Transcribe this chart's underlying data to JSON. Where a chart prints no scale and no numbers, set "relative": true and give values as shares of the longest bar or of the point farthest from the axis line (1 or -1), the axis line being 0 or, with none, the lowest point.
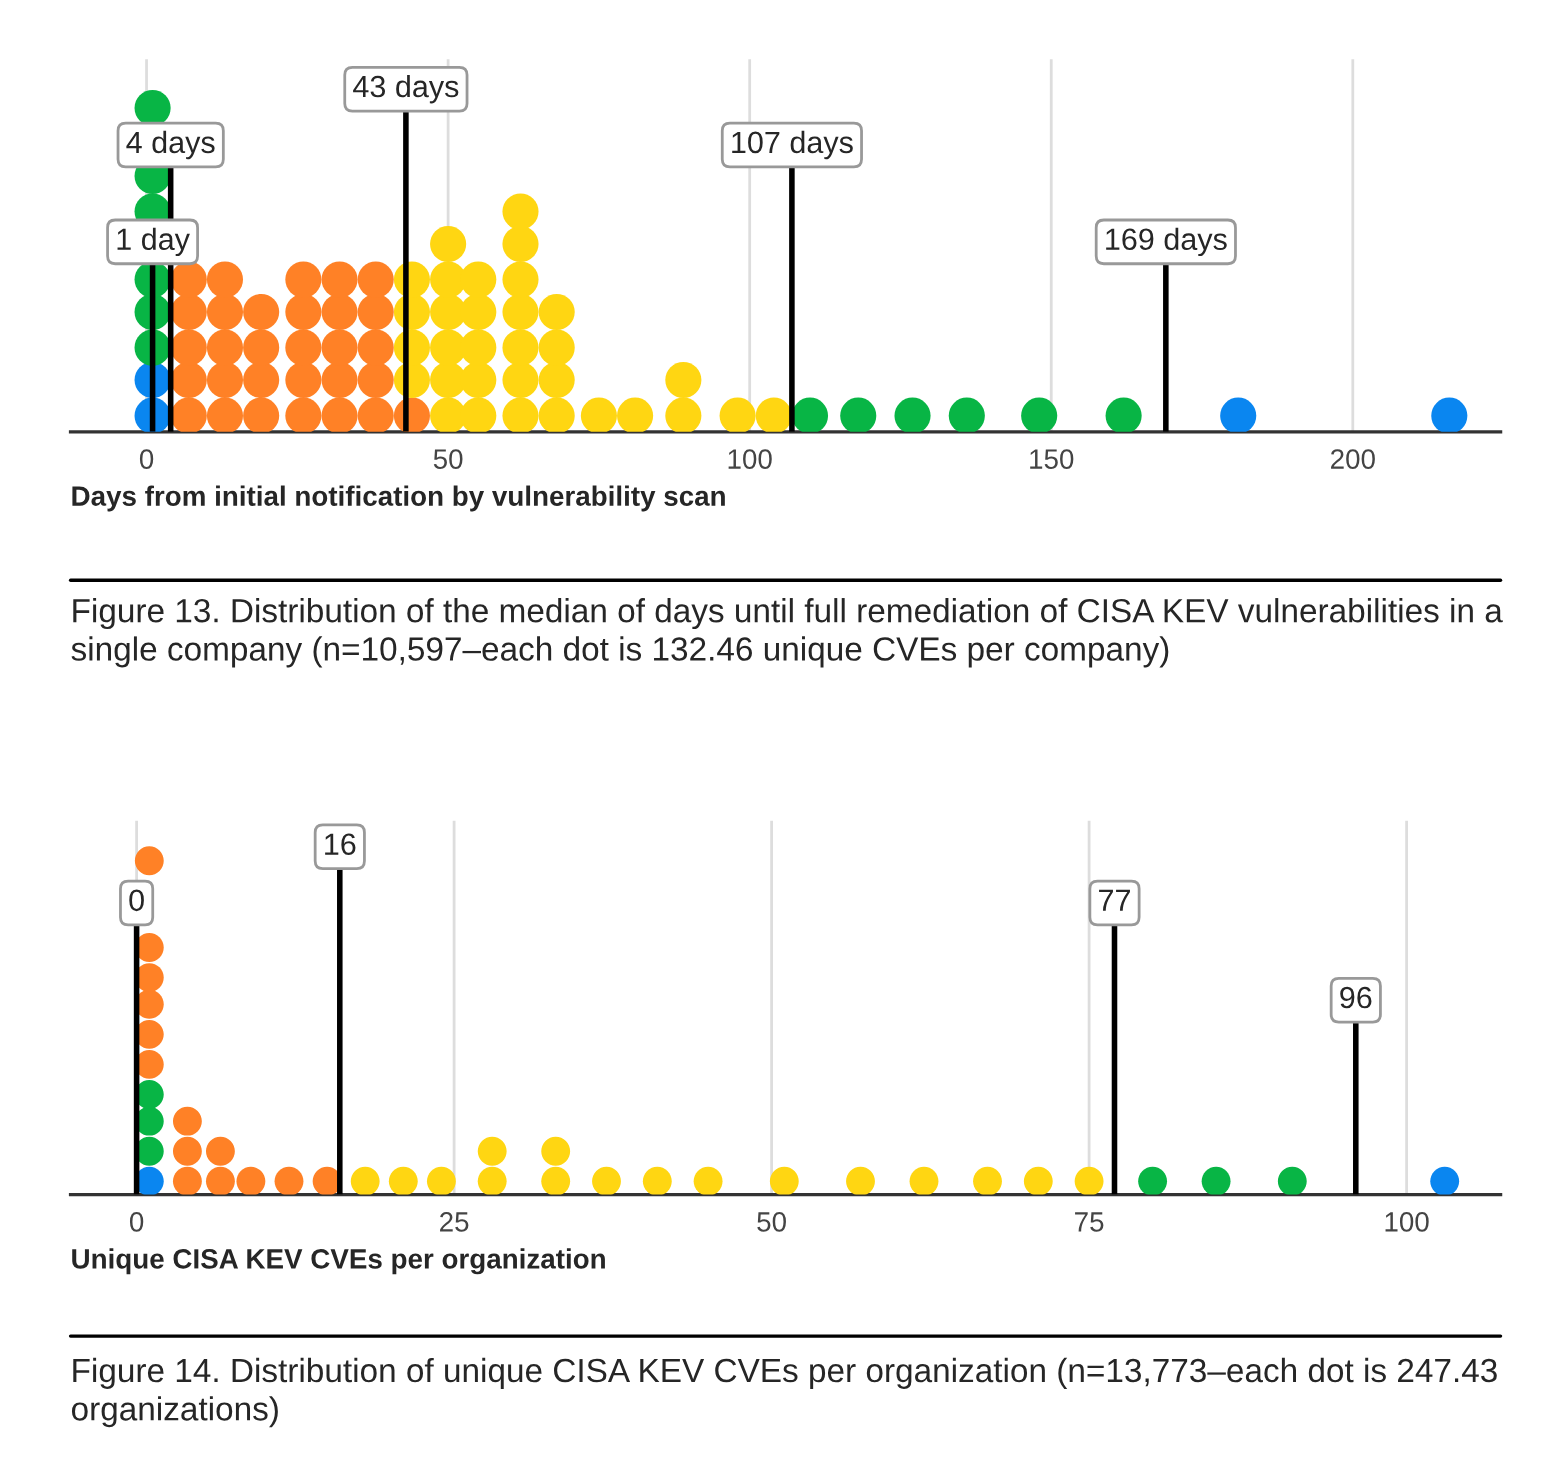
{
  "chart_data": [
    {
      "type": "scatter",
      "relative": true,
      "marker": "circle",
      "grid": "x",
      "tick_labels": "x",
      "xlabel": "Days from initial notification by vulnerability scan",
      "xlim": [
        -12.6,
        224.5
      ],
      "xticks": [
        0,
        50,
        100,
        150,
        200
      ],
      "series": [
        {
          "color": "#0a86f0",
          "x": [
            1,
            1,
            181,
            216
          ],
          "values": [
            0.05,
            0.16,
            0.05,
            0.05
          ]
        },
        {
          "color": "#08b545",
          "x": [
            1,
            1,
            1,
            1,
            1,
            1,
            110,
            118,
            127,
            136,
            148,
            162
          ],
          "values": [
            0.26,
            0.37,
            0.47,
            0.68,
            0.79,
            1.0,
            0.05,
            0.05,
            0.05,
            0.05,
            0.05,
            0.05
          ]
        },
        {
          "color": "#ff8126",
          "x": [
            7,
            7,
            7,
            7,
            7,
            13,
            13,
            13,
            13,
            13,
            19,
            19,
            19,
            19,
            26,
            26,
            26,
            26,
            26,
            32,
            32,
            32,
            32,
            32,
            38,
            38,
            38,
            38,
            38,
            44
          ],
          "values": [
            0.05,
            0.16,
            0.26,
            0.37,
            0.47,
            0.05,
            0.16,
            0.26,
            0.37,
            0.47,
            0.05,
            0.16,
            0.26,
            0.37,
            0.05,
            0.16,
            0.26,
            0.37,
            0.47,
            0.05,
            0.16,
            0.26,
            0.37,
            0.47,
            0.05,
            0.16,
            0.26,
            0.37,
            0.47,
            0.05
          ]
        },
        {
          "color": "#ffd612",
          "x": [
            44,
            44,
            44,
            44,
            50,
            50,
            50,
            50,
            50,
            50,
            55,
            55,
            55,
            55,
            55,
            62,
            62,
            62,
            62,
            62,
            62,
            62,
            68,
            68,
            68,
            68,
            75,
            81,
            89,
            89,
            98,
            104
          ],
          "values": [
            0.16,
            0.26,
            0.37,
            0.47,
            0.05,
            0.16,
            0.26,
            0.37,
            0.47,
            0.58,
            0.05,
            0.16,
            0.26,
            0.37,
            0.47,
            0.05,
            0.16,
            0.26,
            0.37,
            0.47,
            0.58,
            0.68,
            0.05,
            0.16,
            0.26,
            0.37,
            0.05,
            0.05,
            0.05,
            0.16,
            0.05,
            0.05
          ]
        }
      ],
      "ref_lines": [
        {
          "axis": "x",
          "value": 1,
          "label": "1 day",
          "color": "#000000"
        },
        {
          "axis": "x",
          "value": 4,
          "label": "4 days",
          "color": "#000000"
        },
        {
          "axis": "x",
          "value": 43,
          "label": "43 days",
          "color": "#000000"
        },
        {
          "axis": "x",
          "value": 107,
          "label": "107 days",
          "color": "#000000"
        },
        {
          "axis": "x",
          "value": 169,
          "label": "169 days",
          "color": "#000000"
        }
      ],
      "annotations": [
        "Figure 13. Distribution of the median of days until full remediation of CISA KEV vulnerabilities in a single company (n=10,597–each dot is 132.46 unique CVEs per company)"
      ]
    },
    {
      "type": "scatter",
      "relative": true,
      "marker": "circle",
      "grid": "x",
      "tick_labels": "x",
      "xlabel": "Unique CISA KEV CVEs per organization",
      "xlim": [
        -5.2,
        107.4
      ],
      "xticks": [
        0,
        25,
        50,
        75,
        100
      ],
      "series": [
        {
          "color": "#0a86f0",
          "x": [
            1,
            103
          ],
          "values": [
            0.04,
            0.04
          ]
        },
        {
          "color": "#08b545",
          "x": [
            1,
            1,
            1,
            80,
            85,
            91
          ],
          "values": [
            0.13,
            0.22,
            0.3,
            0.04,
            0.04,
            0.04
          ]
        },
        {
          "color": "#ff8126",
          "x": [
            1,
            1,
            1,
            1,
            1,
            1,
            4,
            4,
            4,
            6.6,
            6.6,
            9,
            12,
            15
          ],
          "values": [
            0.39,
            0.48,
            0.57,
            0.65,
            0.74,
            1.0,
            0.04,
            0.13,
            0.22,
            0.04,
            0.13,
            0.04,
            0.04,
            0.04
          ]
        },
        {
          "color": "#ffd612",
          "x": [
            18,
            21,
            24,
            28,
            28,
            33,
            33,
            37,
            41,
            45,
            51,
            57,
            62,
            67,
            71,
            75
          ],
          "values": [
            0.04,
            0.04,
            0.04,
            0.04,
            0.13,
            0.04,
            0.13,
            0.04,
            0.04,
            0.04,
            0.04,
            0.04,
            0.04,
            0.04,
            0.04,
            0.04
          ]
        }
      ],
      "ref_lines": [
        {
          "axis": "x",
          "value": 0,
          "label": "0",
          "color": "#000000"
        },
        {
          "axis": "x",
          "value": 16,
          "label": "16",
          "color": "#000000"
        },
        {
          "axis": "x",
          "value": 77,
          "label": "77",
          "color": "#000000"
        },
        {
          "axis": "x",
          "value": 96,
          "label": "96",
          "color": "#000000"
        }
      ],
      "annotations": [
        "Figure 14. Distribution of unique CISA KEV CVEs per organization (n=13,773–each dot is 247.43 organizations)"
      ]
    }
  ]
}
